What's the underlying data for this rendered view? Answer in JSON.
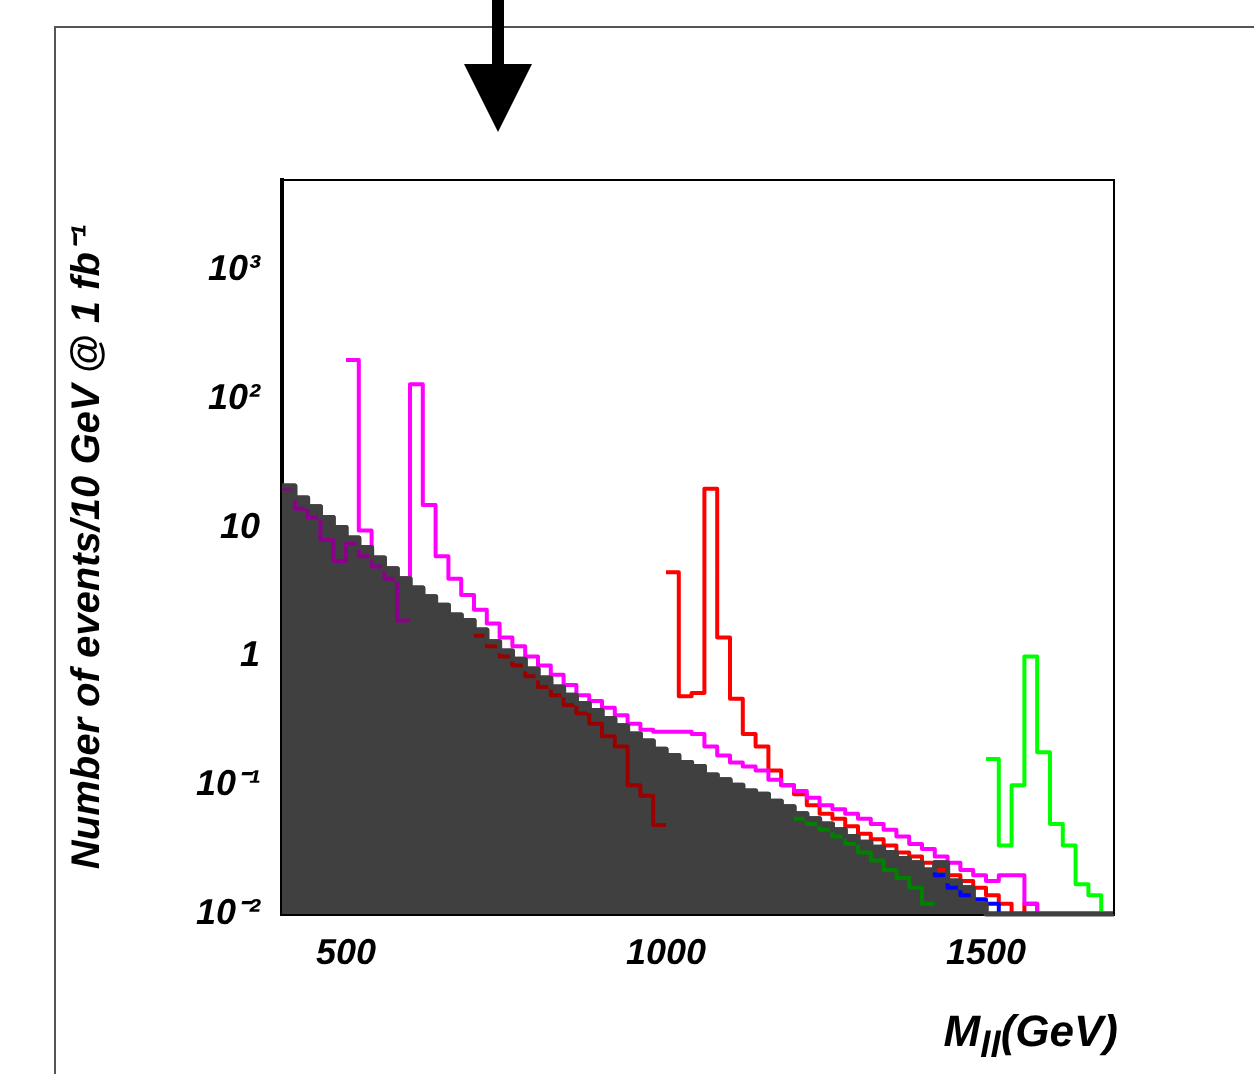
{
  "chart_data": {
    "type": "histogram",
    "xlabel": "M$_{ll}$(GeV)",
    "ylabel": "Number of events/10 GeV @ 1 fb⁻¹",
    "bins": [
      400,
      420,
      440,
      460,
      480,
      500,
      520,
      540,
      560,
      580,
      600,
      620,
      640,
      660,
      680,
      700,
      720,
      740,
      760,
      780,
      800,
      820,
      840,
      860,
      880,
      900,
      920,
      940,
      960,
      980,
      1000,
      1020,
      1040,
      1060,
      1080,
      1100,
      1120,
      1140,
      1160,
      1180,
      1200,
      1220,
      1240,
      1260,
      1280,
      1300,
      1320,
      1340,
      1360,
      1380,
      1400,
      1420,
      1440,
      1460,
      1480,
      1500,
      1520,
      1540,
      1560,
      1580,
      1600,
      1620,
      1640,
      1660,
      1680,
      1700
    ],
    "series": [
      {
        "color": "#404040",
        "values": [
          21,
          17,
          14.5,
          12,
          10,
          8.3,
          7,
          5.8,
          4.8,
          4,
          3.4,
          2.9,
          2.5,
          2.1,
          1.9,
          1.6,
          1.3,
          1.1,
          0.95,
          0.8,
          0.68,
          0.58,
          0.5,
          0.43,
          0.38,
          0.33,
          0.29,
          0.25,
          0.22,
          0.19,
          0.17,
          0.15,
          0.14,
          0.12,
          0.11,
          0.1,
          0.09,
          0.085,
          0.075,
          0.068,
          0.06,
          0.055,
          0.05,
          0.045,
          0.04,
          0.036,
          0.033,
          0.03,
          0.027,
          0.025,
          0.022,
          0.025,
          0.018,
          0.016,
          0.012,
          0.01,
          0.01,
          0.01,
          0.01,
          0.01,
          0.01,
          0.01,
          0.01,
          0.01,
          0.01
        ]
      },
      {
        "color": "#8b008b",
        "bins": [
          400,
          420,
          440,
          460,
          480,
          500,
          520,
          540,
          560,
          580,
          600
        ],
        "values": [
          20,
          14,
          12,
          8,
          5.5,
          7.5,
          6,
          5,
          4,
          1.9
        ]
      },
      {
        "color": "#990000",
        "bins": [
          700,
          720,
          740,
          760,
          780,
          800,
          820,
          840,
          860,
          880,
          900,
          920,
          940,
          960,
          980,
          1000
        ],
        "values": [
          1.45,
          1.2,
          1.0,
          0.85,
          0.7,
          0.58,
          0.5,
          0.42,
          0.36,
          0.3,
          0.24,
          0.2,
          0.1,
          0.083,
          0.049
        ]
      },
      {
        "color": "#008000",
        "bins": [
          1200,
          1220,
          1240,
          1260,
          1280,
          1300,
          1320,
          1340,
          1360,
          1380,
          1400,
          1420
        ],
        "values": [
          0.055,
          0.05,
          0.045,
          0.04,
          0.035,
          0.03,
          0.026,
          0.022,
          0.019,
          0.016,
          0.012
        ]
      },
      {
        "color": "#0000ff",
        "bins": [
          1400,
          1420,
          1440,
          1460,
          1480,
          1500,
          1520,
          1540
        ],
        "values": [
          0.022,
          0.02,
          0.016,
          0.014,
          0.013,
          0.012,
          0.01
        ]
      },
      {
        "color": "#ff00ff",
        "bins": [
          500,
          520,
          540,
          560,
          580,
          600,
          620,
          640,
          660,
          680,
          700,
          720,
          740,
          760,
          780,
          800,
          820,
          840,
          860,
          880,
          900,
          920,
          940,
          960,
          980,
          1000,
          1020,
          1040,
          1060,
          1080,
          1100,
          1120,
          1140,
          1160,
          1180,
          1200,
          1220,
          1240,
          1260,
          1280,
          1300,
          1320,
          1340,
          1360,
          1380,
          1400,
          1420,
          1440,
          1460,
          1480,
          1500,
          1520,
          1540,
          1560,
          1580,
          1600,
          1620,
          1640,
          1660,
          1680,
          1700
        ],
        "values": [
          200,
          9.5,
          5.8,
          4.8,
          4,
          130,
          15,
          6,
          4,
          3,
          2.3,
          1.8,
          1.4,
          1.2,
          1.0,
          0.85,
          0.72,
          0.6,
          0.5,
          0.45,
          0.4,
          0.35,
          0.3,
          0.27,
          0.26,
          0.26,
          0.26,
          0.25,
          0.2,
          0.17,
          0.15,
          0.14,
          0.13,
          0.11,
          0.1,
          0.09,
          0.08,
          0.07,
          0.065,
          0.06,
          0.055,
          0.05,
          0.045,
          0.04,
          0.035,
          0.032,
          0.028,
          0.025,
          0.022,
          0.02,
          0.018,
          0.02,
          0.02,
          0.012,
          0.01,
          0.01,
          0.01,
          0.01,
          0.01,
          0.01
        ]
      },
      {
        "color": "#ff0000",
        "bins": [
          1000,
          1020,
          1040,
          1060,
          1080,
          1100,
          1120,
          1140,
          1160,
          1180,
          1200,
          1220,
          1240,
          1260,
          1280,
          1300,
          1320,
          1340,
          1360,
          1380,
          1400,
          1420,
          1440,
          1460,
          1480,
          1500,
          1520,
          1540,
          1560,
          1580,
          1600,
          1620,
          1640,
          1660,
          1680,
          1700
        ],
        "values": [
          4.5,
          0.49,
          0.52,
          20,
          1.4,
          0.47,
          0.25,
          0.2,
          0.13,
          0.1,
          0.085,
          0.07,
          0.06,
          0.055,
          0.048,
          0.042,
          0.038,
          0.034,
          0.03,
          0.028,
          0.025,
          0.022,
          0.02,
          0.018,
          0.016,
          0.014,
          0.012,
          0.01,
          0.012,
          0.01,
          0.01,
          0.01,
          0.01,
          0.01,
          0.01
        ]
      },
      {
        "color": "#00ff00",
        "bins": [
          1500,
          1520,
          1540,
          1560,
          1580,
          1600,
          1620,
          1640,
          1660,
          1680,
          1700
        ],
        "values": [
          0.16,
          0.034,
          0.1,
          1.0,
          0.18,
          0.05,
          0.034,
          0.017,
          0.014,
          0.01
        ]
      }
    ],
    "xlim": [
      400,
      1700
    ],
    "xticks": [
      500,
      1000,
      1500
    ],
    "ylim": [
      0.01,
      5000
    ],
    "yticks": [
      {
        "value": 0.01,
        "label": "10⁻²"
      },
      {
        "value": 0.1,
        "label": "10⁻¹"
      },
      1,
      10,
      {
        "value": 100,
        "label": "10²"
      },
      {
        "value": 1000,
        "label": "10³"
      }
    ],
    "log": "y",
    "grid": false,
    "legend": false
  }
}
